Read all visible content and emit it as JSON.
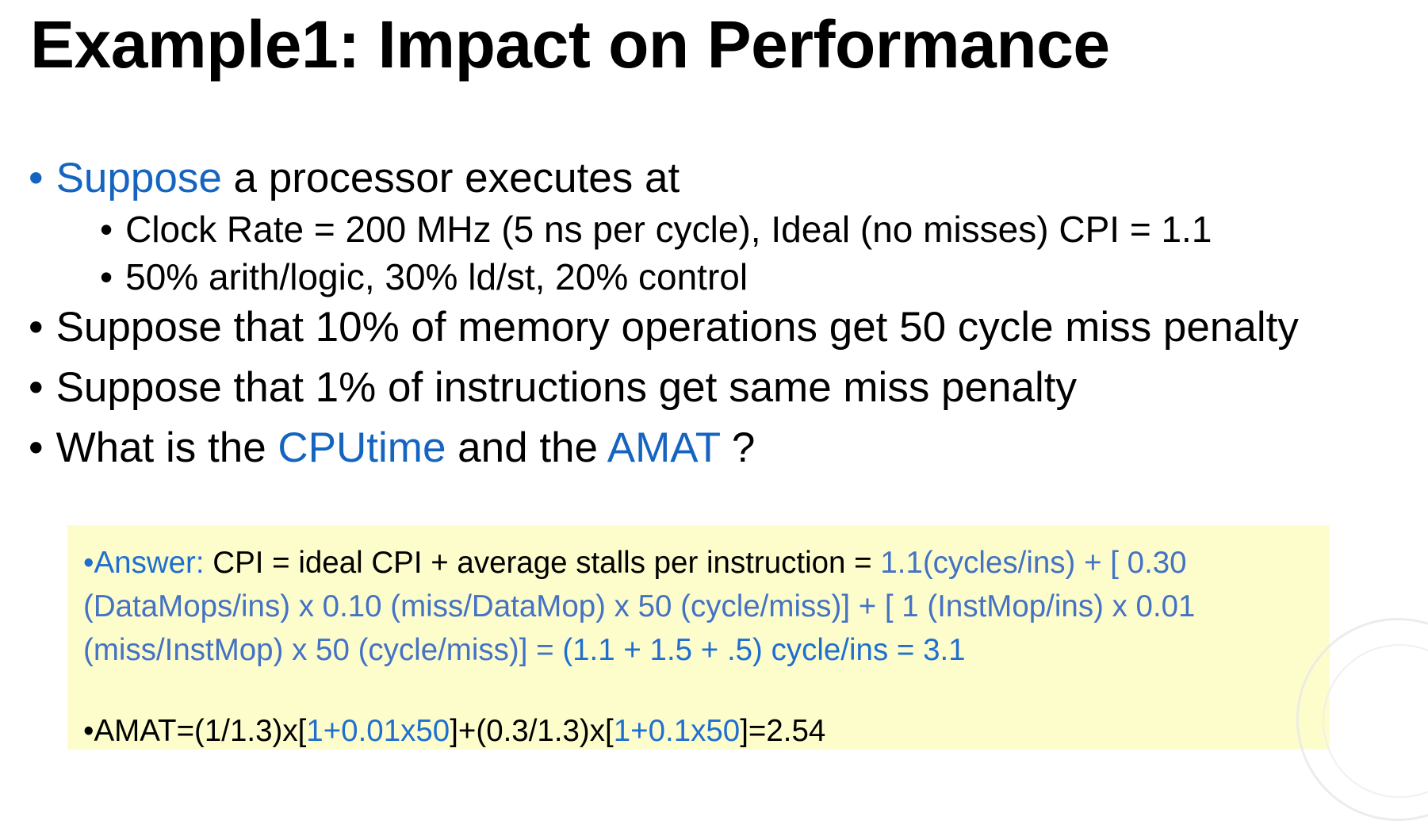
{
  "slide": {
    "title": "Example1: Impact on Performance",
    "bullets": {
      "b1": {
        "lead": "Suppose",
        "rest": " a processor executes at"
      },
      "b1_sub1": "Clock Rate = 200 MHz (5 ns per cycle), Ideal (no misses) CPI = 1.1",
      "b1_sub2": "50% arith/logic, 30% ld/st, 20% control",
      "b2": "Suppose that 10% of memory operations get 50 cycle miss penalty",
      "b3": "Suppose that 1% of instructions get same miss penalty",
      "b4": {
        "p1": "What is the ",
        "cputime": "CPUtime",
        "p2": " and the ",
        "amat": "AMAT",
        "p3": " ?"
      }
    },
    "answer": {
      "label": "Answer:",
      "cpi_text": " CPI = ideal CPI + average stalls per instruction = ",
      "formula": "1.1(cycles/ins)  + [ 0.30 (DataMops/ins) x 0.10 (miss/DataMop) x 50 (cycle/miss)]  + [ 1 (InstMop/ins) x 0.01 (miss/InstMop) x 50 (cycle/miss)] = ",
      "result": "(1.1 +  1.5 + .5) cycle/ins = 3.1",
      "amat_prefix": "AMAT=(1/1.3)x[",
      "amat_term1": "1+0.01x50",
      "amat_mid": "]+(0.3/1.3)x[",
      "amat_term2": "1+0.1x50",
      "amat_suffix": "]=2.54"
    },
    "colors": {
      "accent_blue": "#1565c0",
      "answer_blue": "#1f6fd1",
      "answer_slate": "#4472c4",
      "answer_bg": "#fdfdcc"
    },
    "bullet_glyph": "•"
  }
}
